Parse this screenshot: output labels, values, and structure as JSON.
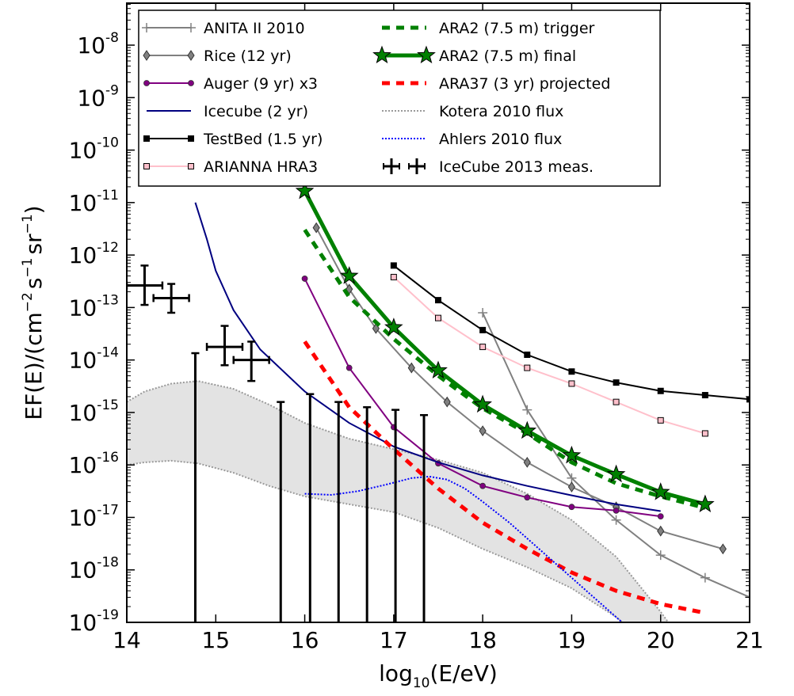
{
  "chart_data": {
    "type": "line",
    "title": "",
    "xlabel": "log10(E/eV)",
    "xlabel_parts": {
      "pre": "log",
      "sub": "10",
      "post": "(E/eV)"
    },
    "ylabel": "EF(E)/(cm^-2 s^-1 sr^-1)",
    "ylabel_parts": {
      "pre": "EF(E)/(cm",
      "e1": "−2",
      "mid1": "s",
      "e2": "−1",
      "mid2": "sr",
      "e3": "−1",
      "post": ")"
    },
    "xlim": [
      14,
      21
    ],
    "ylim_log10": [
      -19,
      -7.2
    ],
    "yscale": "log",
    "grid": false,
    "legend_position": "top",
    "x_ticks": [
      "14",
      "15",
      "16",
      "17",
      "18",
      "19",
      "20",
      "21"
    ],
    "y_ticks": [
      {
        "base": "10",
        "exp": "-8"
      },
      {
        "base": "10",
        "exp": "-9"
      },
      {
        "base": "10",
        "exp": "-10"
      },
      {
        "base": "10",
        "exp": "-11"
      },
      {
        "base": "10",
        "exp": "-12"
      },
      {
        "base": "10",
        "exp": "-13"
      },
      {
        "base": "10",
        "exp": "-14"
      },
      {
        "base": "10",
        "exp": "-15"
      },
      {
        "base": "10",
        "exp": "-16"
      },
      {
        "base": "10",
        "exp": "-17"
      },
      {
        "base": "10",
        "exp": "-18"
      },
      {
        "base": "10",
        "exp": "-19"
      }
    ],
    "kotera_band": {
      "name": "Kotera 2010 flux",
      "color": "#9a9a9a",
      "fill": "#e3e3e3",
      "x": [
        14,
        14.2,
        14.5,
        14.8,
        15.2,
        15.6,
        16,
        16.5,
        17,
        17.5,
        18,
        18.5,
        19,
        19.5,
        20,
        20.3
      ],
      "upper_log10": [
        -14.8,
        -14.6,
        -14.45,
        -14.4,
        -14.55,
        -14.85,
        -15.2,
        -15.5,
        -15.7,
        -15.9,
        -16.15,
        -16.55,
        -17.05,
        -17.75,
        -18.8,
        -19.5
      ],
      "lower_log10": [
        -16,
        -15.95,
        -15.92,
        -15.97,
        -16.15,
        -16.4,
        -16.6,
        -16.75,
        -16.9,
        -17.2,
        -17.6,
        -17.95,
        -18.35,
        -18.9,
        -19.6,
        -20
      ]
    },
    "series": [
      {
        "name": "ANITA II 2010",
        "color": "#808080",
        "marker": "plus",
        "width": 2,
        "x": [
          18,
          18.5,
          19,
          19.5,
          20,
          20.5,
          21
        ],
        "log10y": [
          -13.1,
          -14.95,
          -16.25,
          -17.05,
          -17.72,
          -18.15,
          -18.52
        ]
      },
      {
        "name": "Rice (12 yr)",
        "color": "#808080",
        "marker": "diamond",
        "width": 2,
        "x": [
          16.13,
          16.5,
          16.8,
          17.2,
          17.6,
          18,
          18.5,
          19,
          19.5,
          20,
          20.7
        ],
        "log10y": [
          -11.48,
          -12.65,
          -13.4,
          -14.15,
          -14.8,
          -15.35,
          -15.95,
          -16.42,
          -16.8,
          -17.26,
          -17.6
        ]
      },
      {
        "name": "Auger (9 yr) x3",
        "color": "#800080",
        "marker": "circle",
        "width": 2,
        "x": [
          16,
          16.5,
          17,
          17.5,
          18,
          18.5,
          19,
          19.5,
          20
        ],
        "log10y": [
          -12.45,
          -14.15,
          -15.28,
          -15.97,
          -16.4,
          -16.62,
          -16.8,
          -16.87,
          -16.98
        ]
      },
      {
        "name": "Icecube (2 yr)",
        "color": "#000080",
        "marker": "none",
        "width": 2,
        "x": [
          14.77,
          14.9,
          15,
          15.2,
          15.5,
          16,
          16.5,
          17,
          17.5,
          18,
          18.5,
          19,
          19.5,
          20
        ],
        "log10y": [
          -11,
          -11.7,
          -12.3,
          -13.05,
          -13.8,
          -14.6,
          -15.2,
          -15.65,
          -15.95,
          -16.2,
          -16.4,
          -16.58,
          -16.75,
          -16.88
        ]
      },
      {
        "name": "TestBed (1.5 yr)",
        "color": "#000000",
        "marker": "square",
        "width": 2,
        "x": [
          17,
          17.5,
          18,
          18.5,
          19,
          19.5,
          20,
          20.5,
          21
        ],
        "log10y": [
          -12.2,
          -12.86,
          -13.43,
          -13.9,
          -14.22,
          -14.43,
          -14.59,
          -14.67,
          -14.75
        ]
      },
      {
        "name": "ARIANNA HRA3",
        "color": "#ffc0cb",
        "marker": "square",
        "width": 2,
        "x": [
          17,
          17.5,
          18,
          18.5,
          19,
          19.5,
          20,
          20.5
        ],
        "log10y": [
          -12.42,
          -13.2,
          -13.75,
          -14.15,
          -14.45,
          -14.8,
          -15.15,
          -15.4
        ]
      },
      {
        "name": "ARA2 (7.5 m) trigger",
        "color": "#008000",
        "marker": "none",
        "width": 5,
        "dash": "10,8",
        "x": [
          16,
          16.5,
          17,
          17.5,
          18,
          18.5,
          19,
          19.5,
          20,
          20.5
        ],
        "log10y": [
          -11.52,
          -12.8,
          -13.6,
          -14.3,
          -14.92,
          -15.4,
          -15.95,
          -16.35,
          -16.6,
          -16.82
        ]
      },
      {
        "name": "ARA2 (7.5 m) final",
        "color": "#008000",
        "marker": "star",
        "width": 5,
        "x": [
          16,
          16.5,
          17,
          17.5,
          18,
          18.5,
          19,
          19.5,
          20,
          20.5
        ],
        "log10y": [
          -10.78,
          -12.4,
          -13.38,
          -14.2,
          -14.85,
          -15.35,
          -15.82,
          -16.18,
          -16.52,
          -16.75
        ]
      },
      {
        "name": "ARA37 (3 yr) projected",
        "color": "#ff0000",
        "marker": "none",
        "width": 5,
        "dash": "10,8",
        "x": [
          16,
          16.5,
          17,
          17.5,
          18,
          18.5,
          19,
          19.5,
          20,
          20.5
        ],
        "log10y": [
          -13.65,
          -14.9,
          -15.7,
          -16.45,
          -17.1,
          -17.6,
          -18.05,
          -18.4,
          -18.65,
          -18.82
        ]
      },
      {
        "name": "Kotera 2010 flux",
        "color": "#9a9a9a",
        "marker": "none",
        "width": 2,
        "dash": "2,2",
        "legend_only": true,
        "x": [],
        "log10y": []
      },
      {
        "name": "Ahlers 2010 flux",
        "color": "#0000ff",
        "marker": "none",
        "width": 2,
        "dash": "2,2",
        "x": [
          16,
          16.3,
          16.6,
          16.9,
          17.2,
          17.4,
          17.6,
          17.8,
          18,
          18.3,
          18.6,
          18.9,
          19.2,
          19.5,
          19.8
        ],
        "log10y": [
          -16.55,
          -16.57,
          -16.5,
          -16.38,
          -16.25,
          -16.22,
          -16.28,
          -16.45,
          -16.7,
          -17.1,
          -17.55,
          -18,
          -18.45,
          -18.9,
          -19.35
        ]
      }
    ],
    "icecube2013": {
      "name": "IceCube 2013 meas.",
      "color": "#000000",
      "points": [
        {
          "x": 14.2,
          "log10y": -12.58,
          "xerr": 0.2,
          "ylo": -12.95,
          "yhi": -12.2
        },
        {
          "x": 14.5,
          "log10y": -12.82,
          "xerr": 0.2,
          "ylo": -13.1,
          "yhi": -12.55
        },
        {
          "x": 15.1,
          "log10y": -13.75,
          "xerr": 0.2,
          "ylo": -14.1,
          "yhi": -13.35
        },
        {
          "x": 15.4,
          "log10y": -14.0,
          "xerr": 0.2,
          "ylo": -14.4,
          "yhi": -13.65
        }
      ],
      "upper_limits": [
        {
          "x": 14.77,
          "top_log10": -13.87
        },
        {
          "x": 15.73,
          "top_log10": -14.8
        },
        {
          "x": 16.06,
          "top_log10": -14.65
        },
        {
          "x": 16.38,
          "top_log10": -14.8
        },
        {
          "x": 16.7,
          "top_log10": -14.9
        },
        {
          "x": 17.02,
          "top_log10": -14.95
        },
        {
          "x": 17.34,
          "top_log10": -15.05
        }
      ]
    }
  }
}
